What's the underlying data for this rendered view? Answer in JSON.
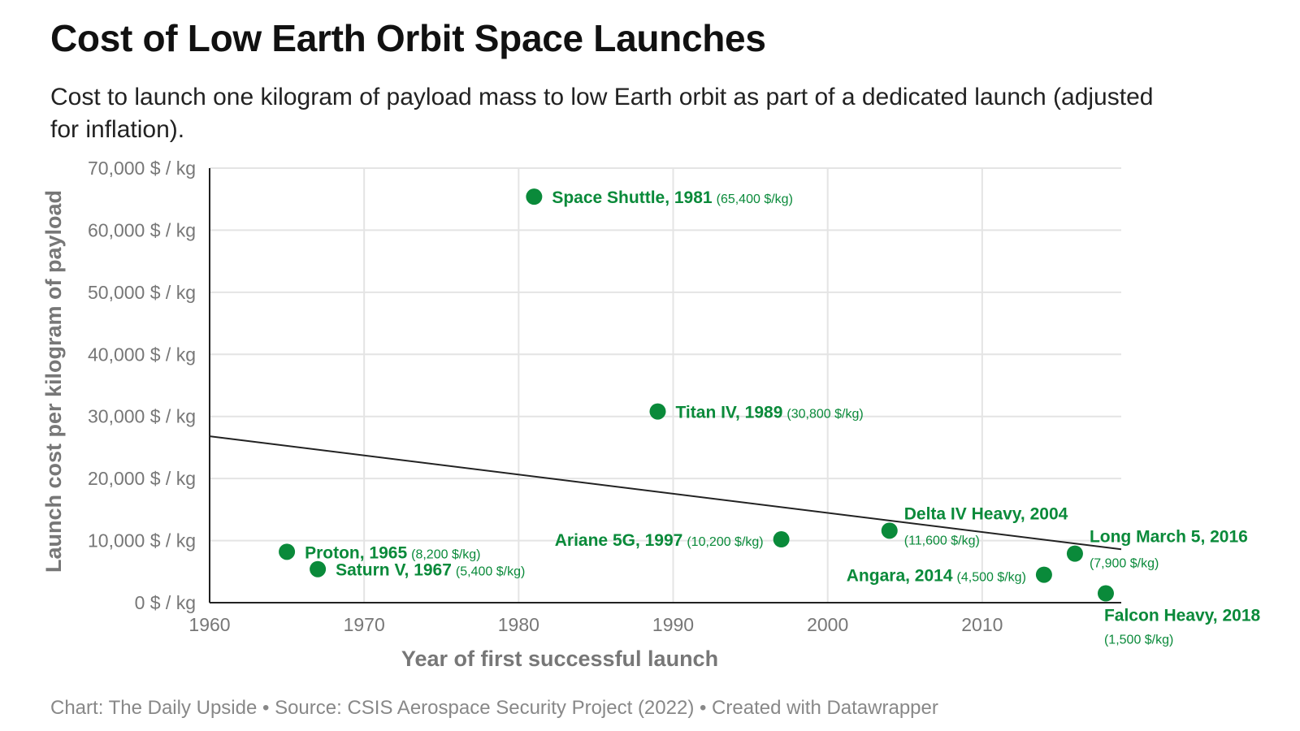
{
  "title": "Cost of Low Earth Orbit Space Launches",
  "subtitle": "Cost to launch one kilogram of payload mass to low Earth orbit as part of a dedicated launch (adjusted for inflation).",
  "footer": "Chart: The Daily Upside • Source: CSIS Aerospace Security Project (2022) • Created with Datawrapper",
  "colors": {
    "point": "#0a8a3a",
    "trend": "#222222",
    "grid": "#e4e4e4",
    "axis": "#222222"
  },
  "chart_data": {
    "type": "scatter",
    "xlabel": "Year of first successful launch",
    "ylabel": "Launch cost per kilogram of payload",
    "xlim": [
      1960,
      2019
    ],
    "ylim": [
      0,
      70000
    ],
    "xticks": [
      "1960",
      "1970",
      "1980",
      "1990",
      "2000",
      "2010"
    ],
    "xtick_values": [
      1960,
      1970,
      1980,
      1990,
      2000,
      2010
    ],
    "yticks": [
      "0 $ / kg",
      "10,000 $ / kg",
      "20,000 $ / kg",
      "30,000 $ / kg",
      "40,000 $ / kg",
      "50,000 $ / kg",
      "60,000 $ / kg",
      "70,000 $ / kg"
    ],
    "ytick_values": [
      0,
      10000,
      20000,
      30000,
      40000,
      50000,
      60000,
      70000
    ],
    "grid": true,
    "points": [
      {
        "name": "Proton, 1965",
        "value_label": "(8,200 $/kg)",
        "x": 1965,
        "y": 8200,
        "label_pos": "right"
      },
      {
        "name": "Saturn V, 1967",
        "value_label": "(5,400 $/kg)",
        "x": 1967,
        "y": 5400,
        "label_pos": "right"
      },
      {
        "name": "Space Shuttle, 1981",
        "value_label": "(65,400 $/kg)",
        "x": 1981,
        "y": 65400,
        "label_pos": "right"
      },
      {
        "name": "Titan IV, 1989",
        "value_label": "(30,800 $/kg)",
        "x": 1989,
        "y": 30800,
        "label_pos": "right"
      },
      {
        "name": "Ariane 5G, 1997",
        "value_label": "(10,200 $/kg)",
        "x": 1997,
        "y": 10200,
        "label_pos": "left"
      },
      {
        "name": "Delta IV Heavy, 2004",
        "value_label": "(11,600 $/kg)",
        "x": 2004,
        "y": 11600,
        "label_pos": "above-right"
      },
      {
        "name": "Angara, 2014",
        "value_label": "(4,500 $/kg)",
        "x": 2014,
        "y": 4500,
        "label_pos": "left"
      },
      {
        "name": "Long March 5, 2016",
        "value_label": "(7,900 $/kg)",
        "x": 2016,
        "y": 7900,
        "label_pos": "above-right"
      },
      {
        "name": "Falcon Heavy, 2018",
        "value_label": "(1,500 $/kg)",
        "x": 2018,
        "y": 1500,
        "label_pos": "below"
      }
    ],
    "trendline": {
      "x": [
        1960,
        2019
      ],
      "y": [
        26800,
        8600
      ]
    }
  }
}
